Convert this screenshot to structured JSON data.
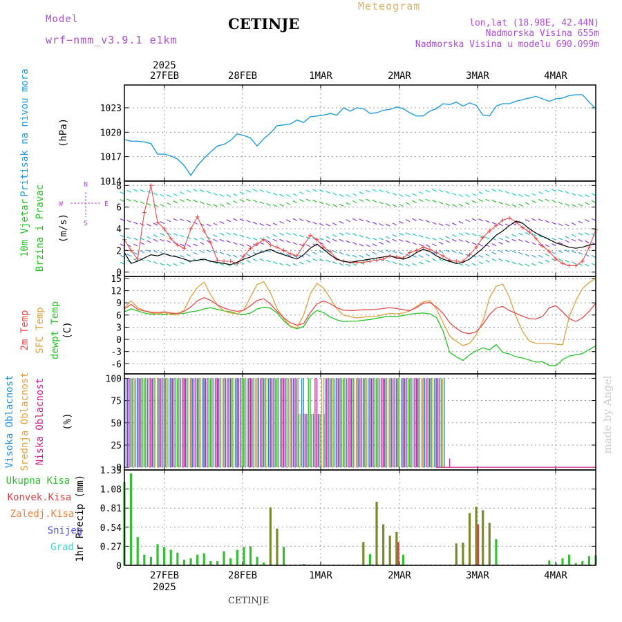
{
  "header": {
    "model_label": "Model",
    "model_name": "wrf−nmm_v3.9.1  e1km",
    "station": "CETINJE",
    "product": "Meteogram",
    "coords": "lon,lat (18.98E, 42.44N)",
    "altitude": "Nadmorska Visina 655m",
    "model_altitude": "Nadmorska Visina u modelu 690.099m"
  },
  "footer": {
    "station": "CETINJE"
  },
  "watermark": "made by Angel",
  "colors": {
    "pressure": "#1e9be0",
    "temp2m": "#e84a4a",
    "sfc_temp": "#e0a040",
    "dewpt": "#22c322",
    "high_cloud": "#1e90e0",
    "mid_cloud": "#e0a040",
    "low_cloud": "#d0208e",
    "precip_total": "#30c030",
    "precip_conv": "#e04040",
    "precip_frozen": "#f08040",
    "snow": "#5050e0",
    "graupel": "#40d0d0",
    "label_purple": "#b04ad8"
  },
  "time_axis": {
    "year": "2025",
    "day_labels": [
      "27FEB",
      "28FEB",
      "1MAR",
      "2MAR",
      "3MAR",
      "4MAR"
    ]
  },
  "chart_data": [
    {
      "type": "line",
      "id": "pressure",
      "ylabel_lines": [
        "Pritisak na nivou mora",
        "(hPa)"
      ],
      "yticks": [
        1014,
        1017,
        1020,
        1023
      ],
      "ylim": [
        1014,
        1025.8
      ],
      "xlim": [
        0,
        71
      ],
      "grid": true,
      "series": [
        {
          "values": [
            1019.1,
            1018.9,
            1018.9,
            1018.8,
            1018.6,
            1017.3,
            1017.3,
            1017.1,
            1016.7,
            1015.9,
            1014.7,
            1015.9,
            1016.8,
            1017.6,
            1018.3,
            1018.5,
            1019.0,
            1019.8,
            1019.6,
            1019.3,
            1018.3,
            1019.2,
            1019.9,
            1020.8,
            1020.9,
            1021.0,
            1021.5,
            1021.2,
            1021.9,
            1022.0,
            1022.1,
            1022.3,
            1022.1,
            1023.0,
            1022.6,
            1023.0,
            1022.9,
            1022.3,
            1022.4,
            1022.7,
            1022.8,
            1023.1,
            1022.9,
            1022.4,
            1022.0,
            1022.0,
            1022.6,
            1022.9,
            1023.5,
            1023.4,
            1023.7,
            1023.2,
            1023.6,
            1023.3,
            1022.1,
            1022.0,
            1023.2,
            1023.5,
            1023.5,
            1023.8,
            1024.0,
            1024.2,
            1024.4,
            1024.1,
            1023.8,
            1024.1,
            1024.2,
            1024.5,
            1024.6,
            1024.6,
            1023.7,
            1022.9
          ]
        }
      ]
    },
    {
      "type": "line",
      "id": "wind",
      "ylabel_lines": [
        "10m Vjetar",
        "Brzina i Pravac",
        "(m/s)"
      ],
      "compass": [
        "N",
        "E",
        "S",
        "W"
      ],
      "yticks": [
        0,
        2,
        4,
        6,
        8
      ],
      "ylim": [
        -0.4,
        8.4
      ],
      "xlim": [
        0,
        71
      ],
      "series": [
        {
          "name": "speed",
          "values": [
            1.8,
            0.8,
            1.0,
            1.3,
            1.6,
            1.5,
            1.7,
            1.5,
            1.4,
            1.2,
            1.0,
            1.1,
            1.2,
            1.0,
            0.9,
            0.8,
            0.7,
            0.9,
            1.2,
            1.4,
            1.7,
            1.9,
            2.1,
            1.8,
            1.6,
            1.4,
            1.2,
            1.6,
            2.2,
            2.6,
            2.1,
            1.6,
            1.2,
            1.0,
            0.9,
            1.0,
            1.1,
            1.2,
            1.3,
            1.4,
            1.5,
            1.3,
            1.2,
            1.4,
            1.8,
            2.1,
            1.9,
            1.5,
            1.2,
            1.0,
            0.8,
            0.9,
            1.2,
            1.7,
            2.2,
            2.8,
            3.4,
            3.8,
            4.3,
            4.7,
            4.5,
            4.0,
            3.6,
            3.3,
            3.0,
            2.7,
            2.5,
            2.3,
            2.2,
            2.3,
            2.5,
            2.6
          ]
        },
        {
          "name": "gust",
          "values": [
            3.0,
            2.0,
            1.2,
            5.5,
            8.0,
            4.6,
            4.0,
            3.1,
            2.5,
            2.2,
            4.0,
            5.1,
            3.8,
            2.7,
            1.1,
            1.0,
            1.0,
            0.8,
            1.5,
            2.2,
            2.6,
            3.0,
            2.5,
            2.3,
            2.0,
            1.7,
            1.5,
            2.5,
            3.4,
            3.0,
            2.3,
            1.9,
            1.2,
            1.0,
            0.9,
            0.9,
            0.9,
            1.0,
            1.1,
            1.2,
            1.5,
            1.4,
            1.3,
            1.8,
            2.0,
            2.3,
            2.1,
            1.8,
            1.5,
            1.1,
            1.0,
            1.0,
            1.6,
            2.3,
            3.2,
            3.8,
            4.3,
            4.8,
            5.0,
            4.6,
            4.1,
            3.7,
            3.1,
            2.4,
            1.9,
            1.2,
            0.8,
            0.6,
            0.6,
            1.0,
            2.3,
            3.9
          ]
        }
      ]
    },
    {
      "type": "line",
      "id": "temperature",
      "ylabel_lines": [
        "2m Temp",
        "SFC Temp",
        "dewpt Temp",
        "(C)"
      ],
      "yticks": [
        -6,
        -3,
        0,
        3,
        6,
        9,
        12,
        15
      ],
      "ylim": [
        -8.5,
        15.5
      ],
      "xlim": [
        0,
        71
      ],
      "series": [
        {
          "name": "2m Temp",
          "values": [
            7.5,
            8.6,
            7.4,
            7.0,
            6.7,
            6.6,
            6.8,
            6.5,
            6.4,
            6.9,
            8.0,
            9.5,
            10.3,
            9.6,
            8.5,
            7.7,
            7.2,
            6.9,
            7.2,
            8.3,
            9.6,
            10.0,
            8.7,
            6.9,
            5.3,
            4.1,
            3.5,
            3.9,
            6.6,
            8.7,
            9.5,
            8.8,
            7.8,
            7.2,
            7.1,
            7.2,
            7.3,
            7.3,
            7.4,
            7.6,
            7.8,
            7.6,
            7.3,
            7.1,
            7.8,
            8.9,
            9.1,
            8.0,
            6.4,
            4.1,
            2.7,
            1.7,
            1.4,
            1.9,
            3.7,
            6.1,
            7.7,
            8.1,
            7.1,
            6.4,
            5.7,
            5.1,
            5.0,
            5.7,
            7.8,
            8.3,
            6.8,
            5.1,
            4.4,
            5.3,
            6.9,
            8.9
          ]
        },
        {
          "name": "SFC Temp",
          "values": [
            7.7,
            9.5,
            7.8,
            7.1,
            6.5,
            6.3,
            6.6,
            6.1,
            6.0,
            7.3,
            10.5,
            12.8,
            14.1,
            11.0,
            8.4,
            7.0,
            6.5,
            6.3,
            7.3,
            10.5,
            13.5,
            14.2,
            11.5,
            7.6,
            5.1,
            3.3,
            2.8,
            6.0,
            11.2,
            13.8,
            12.6,
            10.2,
            7.5,
            6.0,
            5.6,
            5.3,
            5.5,
            5.6,
            5.7,
            6.1,
            6.4,
            6.3,
            6.5,
            7.0,
            8.1,
            9.2,
            9.6,
            7.5,
            4.2,
            0.8,
            -0.5,
            -1.5,
            -1.0,
            1.2,
            4.5,
            10.2,
            13.1,
            13.6,
            10.4,
            5.6,
            1.9,
            -0.4,
            -1.0,
            -1.0,
            -1.0,
            -1.2,
            -1.3,
            5.5,
            9.5,
            12.5,
            14.0,
            15.0
          ]
        },
        {
          "name": "dewpt Temp",
          "values": [
            6.8,
            7.5,
            7.0,
            6.5,
            6.2,
            6.2,
            6.1,
            6.3,
            6.4,
            6.4,
            6.8,
            7.0,
            7.5,
            7.8,
            7.4,
            7.0,
            6.8,
            6.3,
            6.1,
            6.5,
            7.5,
            7.9,
            7.7,
            6.5,
            4.6,
            3.2,
            2.6,
            3.2,
            5.8,
            7.1,
            6.6,
            5.5,
            4.8,
            4.4,
            4.5,
            4.5,
            4.7,
            4.9,
            5.2,
            5.5,
            5.7,
            5.6,
            5.9,
            6.2,
            6.4,
            6.5,
            6.3,
            5.4,
            2.1,
            -3.2,
            -4.3,
            -5.2,
            -3.8,
            -2.8,
            -2.1,
            -2.6,
            -1.3,
            -3.2,
            -3.6,
            -4.3,
            -4.6,
            -5.1,
            -5.6,
            -5.5,
            -6.4,
            -6.5,
            -5.0,
            -4.1,
            -3.8,
            -3.5,
            -2.5,
            -1.6
          ]
        }
      ]
    },
    {
      "type": "bar",
      "id": "cloud",
      "ylabel_lines": [
        "Visoka Oblacnost",
        "Srednja Oblacnost",
        "Niska Oblacnost",
        "(%)"
      ],
      "yticks": [
        0,
        25,
        50,
        75,
        100
      ],
      "ylim": [
        -3,
        105
      ],
      "xlim": [
        0,
        71
      ],
      "note": "cloud cover about 100% until ~3MAR 00UTC, about 0% afterwards"
    },
    {
      "type": "bar",
      "id": "precip",
      "ylabel_lines": [
        "1hr Precip (mm)"
      ],
      "legend": [
        "Ukupna Kisa",
        "Konvek.Kisa",
        "Zaledj.Kisa",
        "Snijeg",
        "Grad"
      ],
      "yticks": [
        0,
        0.27,
        0.54,
        0.81,
        1.08,
        1.35
      ],
      "ylim": [
        0,
        1.35
      ],
      "xlim": [
        0,
        71
      ],
      "series": [
        {
          "name": "Ukupna Kisa",
          "values": [
            1.18,
            1.3,
            0.4,
            0.15,
            0.12,
            0.3,
            0.26,
            0.22,
            0.18,
            0.08,
            0.1,
            0.15,
            0.17,
            0.06,
            0.06,
            0.2,
            0.1,
            0.22,
            0.26,
            0.27,
            0.12,
            0.04,
            0.82,
            0.52,
            0.26,
            0.0,
            0.0,
            0.02,
            0.0,
            0.0,
            0.0,
            0.0,
            0.0,
            0.0,
            0.0,
            0.0,
            0.33,
            0.16,
            0.9,
            0.58,
            0.42,
            0.47,
            0.15,
            0.0,
            0.0,
            0.0,
            0.0,
            0.0,
            0.0,
            0.0,
            0.31,
            0.32,
            0.74,
            0.83,
            0.78,
            0.6,
            0.37,
            0.0,
            0.0,
            0.0,
            0.0,
            0.0,
            0.0,
            0.0,
            0.07,
            0.03,
            0.1,
            0.15,
            0.03,
            0.06,
            0.13,
            0.14
          ]
        },
        {
          "name": "Konvek.Kisa",
          "values": [
            0,
            0,
            0,
            0,
            0,
            0,
            0,
            0,
            0,
            0,
            0,
            0,
            0,
            0,
            0,
            0,
            0,
            0,
            0,
            0,
            0,
            0,
            0.82,
            0.52,
            0,
            0,
            0,
            0,
            0,
            0,
            0,
            0,
            0,
            0,
            0,
            0,
            0.33,
            0,
            0.88,
            0.44,
            0.42,
            0.47,
            0,
            0,
            0,
            0,
            0,
            0,
            0,
            0,
            0.31,
            0.32,
            0.74,
            0.83,
            0.78,
            0.56,
            0,
            0,
            0,
            0,
            0,
            0,
            0,
            0,
            0,
            0,
            0,
            0,
            0,
            0,
            0,
            0
          ]
        }
      ]
    }
  ]
}
